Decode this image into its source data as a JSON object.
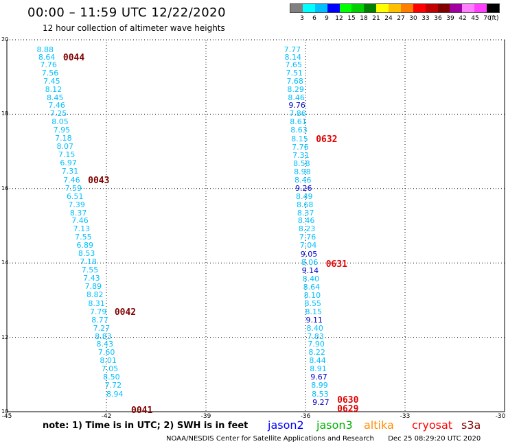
{
  "title": "00:00 – 11:59 UTC 12/22/2020",
  "subtitle": "12 hour collection of altimeter wave heights",
  "colorbar": {
    "colors": [
      "#808080",
      "#00ffff",
      "#00bfff",
      "#0000ff",
      "#00ff00",
      "#00d000",
      "#008000",
      "#ffff00",
      "#ffc000",
      "#ff8000",
      "#ff0000",
      "#c00000",
      "#800000",
      "#a000a0",
      "#ff80ff",
      "#ff40ff",
      "#000000"
    ],
    "ticks": [
      "3",
      "6",
      "9",
      "12",
      "15",
      "18",
      "21",
      "24",
      "27",
      "30",
      "33",
      "36",
      "39",
      "42",
      "45",
      "70"
    ],
    "unit": "(ft)"
  },
  "map": {
    "lon_range": [
      -45,
      -30
    ],
    "lat_range": [
      10,
      20
    ],
    "lon_ticks": [
      "-45",
      "-42",
      "-39",
      "-36",
      "-33",
      "-30"
    ],
    "lat_ticks": [
      "20",
      "18",
      "16",
      "14",
      "12",
      "10"
    ]
  },
  "tracks": [
    {
      "id": "west",
      "pass_labels": [
        {
          "text": "0044",
          "lat": 19.5
        },
        {
          "text": "0043",
          "lat": 16.2
        },
        {
          "text": "0042",
          "lat": 12.65
        },
        {
          "text": "0041",
          "lat": 10.02
        }
      ],
      "readings": [
        {
          "v": "8.88",
          "lat": 19.72,
          "lon": -44.1,
          "c": "#00bfff"
        },
        {
          "v": "8.64",
          "lat": 19.52,
          "lon": -44.05,
          "c": "#00bfff"
        },
        {
          "v": "7.76",
          "lat": 19.32,
          "lon": -44.0,
          "c": "#00bfff"
        },
        {
          "v": "7.56",
          "lat": 19.1,
          "lon": -43.95,
          "c": "#00bfff"
        },
        {
          "v": "7.45",
          "lat": 18.88,
          "lon": -43.9,
          "c": "#00bfff"
        },
        {
          "v": "8.12",
          "lat": 18.66,
          "lon": -43.85,
          "c": "#00bfff"
        },
        {
          "v": "8.45",
          "lat": 18.44,
          "lon": -43.8,
          "c": "#00bfff"
        },
        {
          "v": "7.46",
          "lat": 18.22,
          "lon": -43.75,
          "c": "#00bfff"
        },
        {
          "v": "7.25",
          "lat": 18.0,
          "lon": -43.7,
          "c": "#00bfff"
        },
        {
          "v": "8.05",
          "lat": 17.78,
          "lon": -43.65,
          "c": "#00bfff"
        },
        {
          "v": "7.95",
          "lat": 17.56,
          "lon": -43.6,
          "c": "#00bfff"
        },
        {
          "v": "7.18",
          "lat": 17.34,
          "lon": -43.55,
          "c": "#00bfff"
        },
        {
          "v": "8.07",
          "lat": 17.12,
          "lon": -43.5,
          "c": "#00bfff"
        },
        {
          "v": "7.15",
          "lat": 16.9,
          "lon": -43.45,
          "c": "#00bfff"
        },
        {
          "v": "6.97",
          "lat": 16.68,
          "lon": -43.4,
          "c": "#00bfff"
        },
        {
          "v": "7.31",
          "lat": 16.46,
          "lon": -43.35,
          "c": "#00bfff"
        },
        {
          "v": "7.46",
          "lat": 16.22,
          "lon": -43.3,
          "c": "#00bfff"
        },
        {
          "v": "7.59",
          "lat": 16.0,
          "lon": -43.25,
          "c": "#00bfff"
        },
        {
          "v": "6.51",
          "lat": 15.78,
          "lon": -43.2,
          "c": "#00bfff"
        },
        {
          "v": "7.39",
          "lat": 15.56,
          "lon": -43.15,
          "c": "#00bfff"
        },
        {
          "v": "8.37",
          "lat": 15.34,
          "lon": -43.1,
          "c": "#00bfff"
        },
        {
          "v": "7.46",
          "lat": 15.12,
          "lon": -43.05,
          "c": "#00bfff"
        },
        {
          "v": "7.13",
          "lat": 14.9,
          "lon": -43.0,
          "c": "#00bfff"
        },
        {
          "v": "7.55",
          "lat": 14.68,
          "lon": -42.95,
          "c": "#00bfff"
        },
        {
          "v": "6.89",
          "lat": 14.46,
          "lon": -42.9,
          "c": "#00bfff"
        },
        {
          "v": "8.53",
          "lat": 14.24,
          "lon": -42.85,
          "c": "#00bfff"
        },
        {
          "v": "7.18",
          "lat": 14.02,
          "lon": -42.8,
          "c": "#00bfff"
        },
        {
          "v": "7.55",
          "lat": 13.8,
          "lon": -42.75,
          "c": "#00bfff"
        },
        {
          "v": "7.43",
          "lat": 13.58,
          "lon": -42.7,
          "c": "#00bfff"
        },
        {
          "v": "7.89",
          "lat": 13.36,
          "lon": -42.65,
          "c": "#00bfff"
        },
        {
          "v": "8.82",
          "lat": 13.14,
          "lon": -42.6,
          "c": "#00bfff"
        },
        {
          "v": "8.31",
          "lat": 12.9,
          "lon": -42.55,
          "c": "#00bfff"
        },
        {
          "v": "7.79",
          "lat": 12.68,
          "lon": -42.5,
          "c": "#00bfff"
        },
        {
          "v": "8.77",
          "lat": 12.46,
          "lon": -42.45,
          "c": "#00bfff"
        },
        {
          "v": "7.27",
          "lat": 12.24,
          "lon": -42.4,
          "c": "#00bfff"
        },
        {
          "v": "8.83",
          "lat": 12.02,
          "lon": -42.35,
          "c": "#00bfff"
        },
        {
          "v": "8.43",
          "lat": 11.8,
          "lon": -42.3,
          "c": "#00bfff"
        },
        {
          "v": "7.60",
          "lat": 11.58,
          "lon": -42.25,
          "c": "#00bfff"
        },
        {
          "v": "8.01",
          "lat": 11.36,
          "lon": -42.2,
          "c": "#00bfff"
        },
        {
          "v": "7.05",
          "lat": 11.14,
          "lon": -42.15,
          "c": "#00bfff"
        },
        {
          "v": "8.50",
          "lat": 10.92,
          "lon": -42.1,
          "c": "#00bfff"
        },
        {
          "v": "7.72",
          "lat": 10.7,
          "lon": -42.05,
          "c": "#00bfff"
        },
        {
          "v": "8.94",
          "lat": 10.46,
          "lon": -42.0,
          "c": "#00bfff"
        }
      ]
    },
    {
      "id": "east",
      "pass_labels": [
        {
          "text": "0632",
          "lat": 17.3
        },
        {
          "text": "0631",
          "lat": 13.95
        },
        {
          "text": "0630",
          "lat": 10.3
        },
        {
          "text": "0629",
          "lat": 10.06
        }
      ],
      "readings": [
        {
          "v": "7.77",
          "lat": 19.72,
          "lon": -36.65,
          "c": "#00bfff"
        },
        {
          "v": "8.14",
          "lat": 19.52,
          "lon": -36.63,
          "c": "#00bfff"
        },
        {
          "v": "7.65",
          "lat": 19.32,
          "lon": -36.61,
          "c": "#00bfff"
        },
        {
          "v": "7.51",
          "lat": 19.1,
          "lon": -36.59,
          "c": "#00bfff"
        },
        {
          "v": "7.68",
          "lat": 18.88,
          "lon": -36.57,
          "c": "#00bfff"
        },
        {
          "v": "8.29",
          "lat": 18.66,
          "lon": -36.55,
          "c": "#00bfff"
        },
        {
          "v": "8.46",
          "lat": 18.44,
          "lon": -36.53,
          "c": "#00bfff"
        },
        {
          "v": "9.76",
          "lat": 18.22,
          "lon": -36.51,
          "c": "#0000cd"
        },
        {
          "v": "7.86",
          "lat": 18.0,
          "lon": -36.49,
          "c": "#00bfff"
        },
        {
          "v": "8.61",
          "lat": 17.78,
          "lon": -36.47,
          "c": "#00bfff"
        },
        {
          "v": "8.63",
          "lat": 17.56,
          "lon": -36.45,
          "c": "#00bfff"
        },
        {
          "v": "8.15",
          "lat": 17.32,
          "lon": -36.43,
          "c": "#00bfff"
        },
        {
          "v": "7.76",
          "lat": 17.1,
          "lon": -36.41,
          "c": "#00bfff"
        },
        {
          "v": "7.31",
          "lat": 16.88,
          "lon": -36.39,
          "c": "#00bfff"
        },
        {
          "v": "8.58",
          "lat": 16.66,
          "lon": -36.37,
          "c": "#00bfff"
        },
        {
          "v": "8.98",
          "lat": 16.44,
          "lon": -36.35,
          "c": "#00bfff"
        },
        {
          "v": "8.46",
          "lat": 16.22,
          "lon": -36.33,
          "c": "#00bfff"
        },
        {
          "v": "9.26",
          "lat": 16.0,
          "lon": -36.31,
          "c": "#0000cd"
        },
        {
          "v": "8.49",
          "lat": 15.78,
          "lon": -36.29,
          "c": "#00bfff"
        },
        {
          "v": "8.68",
          "lat": 15.56,
          "lon": -36.27,
          "c": "#00bfff"
        },
        {
          "v": "8.37",
          "lat": 15.34,
          "lon": -36.25,
          "c": "#00bfff"
        },
        {
          "v": "8.46",
          "lat": 15.12,
          "lon": -36.23,
          "c": "#00bfff"
        },
        {
          "v": "8.23",
          "lat": 14.9,
          "lon": -36.21,
          "c": "#00bfff"
        },
        {
          "v": "7.76",
          "lat": 14.68,
          "lon": -36.19,
          "c": "#00bfff"
        },
        {
          "v": "7.04",
          "lat": 14.46,
          "lon": -36.17,
          "c": "#00bfff"
        },
        {
          "v": "9.05",
          "lat": 14.22,
          "lon": -36.15,
          "c": "#0000cd"
        },
        {
          "v": "8.06",
          "lat": 14.0,
          "lon": -36.13,
          "c": "#00bfff"
        },
        {
          "v": "9.14",
          "lat": 13.78,
          "lon": -36.11,
          "c": "#0000cd"
        },
        {
          "v": "8.40",
          "lat": 13.56,
          "lon": -36.09,
          "c": "#00bfff"
        },
        {
          "v": "8.64",
          "lat": 13.34,
          "lon": -36.07,
          "c": "#00bfff"
        },
        {
          "v": "8.10",
          "lat": 13.12,
          "lon": -36.05,
          "c": "#00bfff"
        },
        {
          "v": "8.55",
          "lat": 12.9,
          "lon": -36.03,
          "c": "#00bfff"
        },
        {
          "v": "8.15",
          "lat": 12.68,
          "lon": -36.01,
          "c": "#00bfff"
        },
        {
          "v": "9.11",
          "lat": 12.46,
          "lon": -35.99,
          "c": "#0000cd"
        },
        {
          "v": "8.40",
          "lat": 12.24,
          "lon": -35.97,
          "c": "#00bfff"
        },
        {
          "v": "7.83",
          "lat": 12.02,
          "lon": -35.95,
          "c": "#00bfff"
        },
        {
          "v": "7.90",
          "lat": 11.8,
          "lon": -35.93,
          "c": "#00bfff"
        },
        {
          "v": "8.22",
          "lat": 11.58,
          "lon": -35.91,
          "c": "#00bfff"
        },
        {
          "v": "8.44",
          "lat": 11.36,
          "lon": -35.89,
          "c": "#00bfff"
        },
        {
          "v": "8.91",
          "lat": 11.14,
          "lon": -35.87,
          "c": "#00bfff"
        },
        {
          "v": "9.67",
          "lat": 10.92,
          "lon": -35.85,
          "c": "#0000cd"
        },
        {
          "v": "8.99",
          "lat": 10.7,
          "lon": -35.83,
          "c": "#00bfff"
        },
        {
          "v": "8.53",
          "lat": 10.46,
          "lon": -35.81,
          "c": "#00bfff"
        },
        {
          "v": "9.27",
          "lat": 10.24,
          "lon": -35.79,
          "c": "#0000cd"
        }
      ]
    }
  ],
  "note": "note:  1) Time is in UTC;  2) SWH is in feet",
  "satellites": [
    {
      "name": "jason2",
      "color": "#0000ff"
    },
    {
      "name": "jason3",
      "color": "#00b000"
    },
    {
      "name": "altika",
      "color": "#ff8c00"
    },
    {
      "name": "cryosat",
      "color": "#ff0000"
    },
    {
      "name": "s3a",
      "color": "#800000"
    }
  ],
  "footer_left": "NOAA/NESDIS Center for Satellite Applications and Research",
  "footer_right": "Dec 25 08:29:20 UTC 2020",
  "pass_colors": {
    "west": "#800000",
    "east": "#e00000"
  }
}
